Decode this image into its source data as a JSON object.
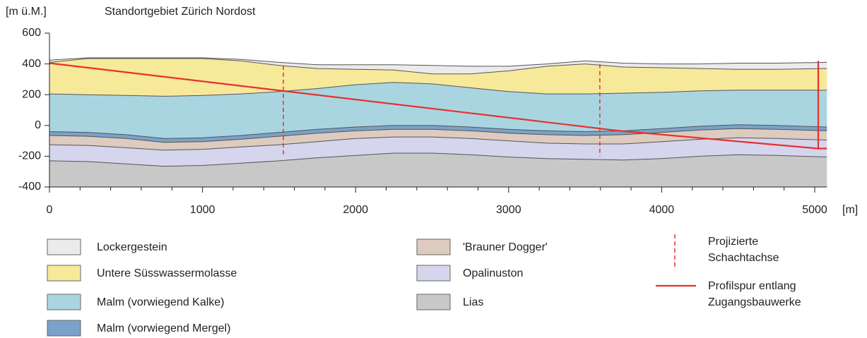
{
  "chart_data": {
    "type": "cross-section",
    "title": "Standortgebiet Zürich Nordost",
    "y_label": "[m ü.M.]",
    "x_label": "[m]",
    "x": [
      0,
      250,
      500,
      750,
      1000,
      1250,
      1500,
      1750,
      2000,
      2250,
      2500,
      2750,
      3000,
      3250,
      3500,
      3750,
      4000,
      4250,
      4500,
      4750,
      5080
    ],
    "xlim": [
      0,
      5080
    ],
    "ylim": [
      -400,
      600
    ],
    "xticks": [
      0,
      1000,
      2000,
      3000,
      4000,
      5000
    ],
    "xminorticks": [
      200,
      400,
      600,
      800,
      1200,
      1400,
      1600,
      1800,
      2200,
      2400,
      2600,
      2800,
      3200,
      3400,
      3600,
      3800,
      4200,
      4400,
      4600,
      4800
    ],
    "yticks": [
      -400,
      -200,
      0,
      200,
      400,
      600
    ],
    "series": [
      {
        "name": "Lockergestein",
        "color": "#ebebeb",
        "values": [
          425,
          440,
          440,
          440,
          440,
          430,
          410,
          395,
          395,
          395,
          390,
          385,
          385,
          400,
          420,
          405,
          400,
          400,
          405,
          405,
          410
        ]
      },
      {
        "name": "Untere Süsswassermolasse",
        "color": "#f7e99a",
        "values": [
          410,
          435,
          435,
          435,
          435,
          420,
          390,
          370,
          365,
          360,
          335,
          335,
          355,
          385,
          400,
          380,
          375,
          370,
          365,
          365,
          370
        ]
      },
      {
        "name": "Malm (vorwiegend Kalke)",
        "color": "#a9d5e1",
        "values": [
          205,
          200,
          195,
          190,
          195,
          205,
          220,
          240,
          265,
          280,
          270,
          245,
          220,
          205,
          205,
          210,
          215,
          225,
          230,
          230,
          230
        ]
      },
      {
        "name": "Malm (vorwiegend Mergel)",
        "color": "#7aa2c9",
        "values": [
          -40,
          -45,
          -60,
          -85,
          -80,
          -65,
          -45,
          -25,
          -10,
          0,
          0,
          -10,
          -25,
          -35,
          -40,
          -35,
          -20,
          -5,
          5,
          0,
          -10
        ]
      },
      {
        "name": "'Brauner Dogger'",
        "color": "#ddcbbf",
        "values": [
          -65,
          -70,
          -85,
          -110,
          -105,
          -90,
          -70,
          -50,
          -35,
          -25,
          -25,
          -35,
          -50,
          -60,
          -65,
          -60,
          -45,
          -30,
          -20,
          -25,
          -35
        ]
      },
      {
        "name": "Opalinuston",
        "color": "#d5d5ee",
        "values": [
          -125,
          -130,
          -145,
          -160,
          -155,
          -140,
          -125,
          -105,
          -85,
          -75,
          -75,
          -85,
          -100,
          -115,
          -120,
          -120,
          -105,
          -90,
          -80,
          -85,
          -95
        ]
      },
      {
        "name": "Lias",
        "color": "#c8c8c8",
        "values": [
          -230,
          -235,
          -250,
          -265,
          -260,
          -245,
          -230,
          -210,
          -195,
          -180,
          -180,
          -190,
          -205,
          -215,
          -220,
          -225,
          -215,
          -200,
          -190,
          -195,
          -205
        ]
      }
    ],
    "lines": [
      {
        "name": "Projizierte Schachtachse",
        "color": "#e8302a",
        "dashed": true,
        "x": [
          1528,
          1528,
          null,
          3596,
          3596
        ],
        "y": [
          390,
          -200,
          null,
          400,
          -200
        ]
      },
      {
        "name": "Profilspur entlang Zugangsbauwerke",
        "color": "#e8302a",
        "dashed": false,
        "x": [
          0,
          3680,
          3780,
          5023,
          5023,
          null,
          5023,
          5080
        ],
        "y": [
          405,
          -30,
          -40,
          -150,
          420,
          null,
          -150,
          -150
        ]
      }
    ]
  }
}
